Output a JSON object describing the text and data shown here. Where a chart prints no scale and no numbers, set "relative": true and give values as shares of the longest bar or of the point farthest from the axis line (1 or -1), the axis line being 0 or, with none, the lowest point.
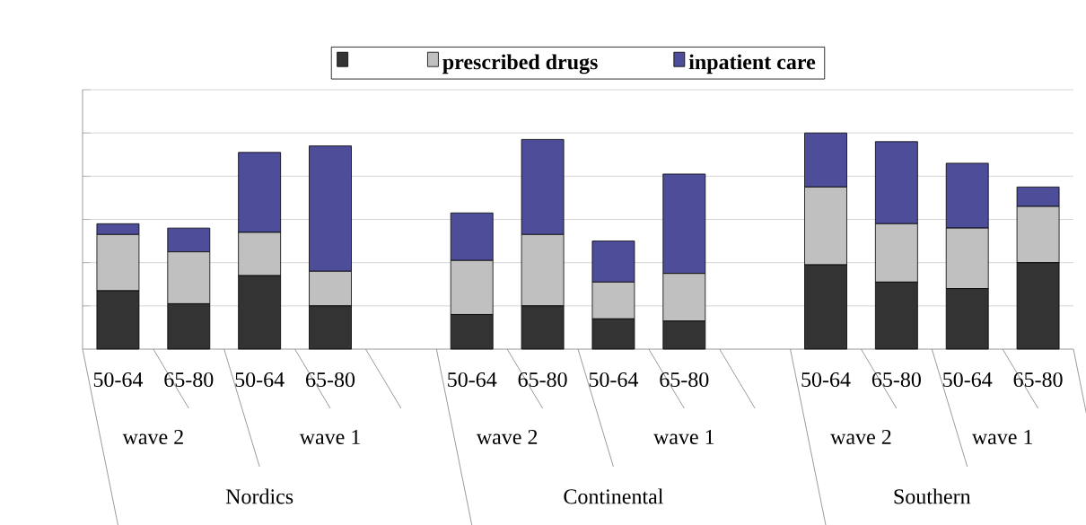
{
  "chart_data": {
    "type": "bar",
    "stacked": true,
    "relative": true,
    "grid": "y",
    "legend": "top",
    "categories": [
      "50-64",
      "65-80",
      "50-64",
      "65-80",
      null,
      "50-64",
      "65-80",
      "50-64",
      "65-80",
      null,
      "50-64",
      "65-80",
      "50-64",
      "65-80"
    ],
    "series": [
      {
        "color": "#333333",
        "values": [
          0.27,
          0.21,
          0.34,
          0.2,
          null,
          0.16,
          0.2,
          0.14,
          0.13,
          null,
          0.39,
          0.31,
          0.28,
          0.4
        ]
      },
      {
        "name": "prescribed drugs",
        "color": "#c0c0c0",
        "values": [
          0.26,
          0.24,
          0.2,
          0.16,
          null,
          0.25,
          0.33,
          0.17,
          0.22,
          null,
          0.36,
          0.27,
          0.28,
          0.26
        ]
      },
      {
        "name": "inpatient care",
        "color": "#4d4d99",
        "values": [
          0.05,
          0.11,
          0.37,
          0.58,
          null,
          0.22,
          0.44,
          0.19,
          0.46,
          null,
          0.25,
          0.38,
          0.3,
          0.09
        ]
      }
    ],
    "annotations": [
      "wave 2",
      "wave 1",
      "wave 2",
      "wave 1",
      "wave 2",
      "wave 1",
      "Nordics",
      "Continental",
      "Southern"
    ]
  }
}
